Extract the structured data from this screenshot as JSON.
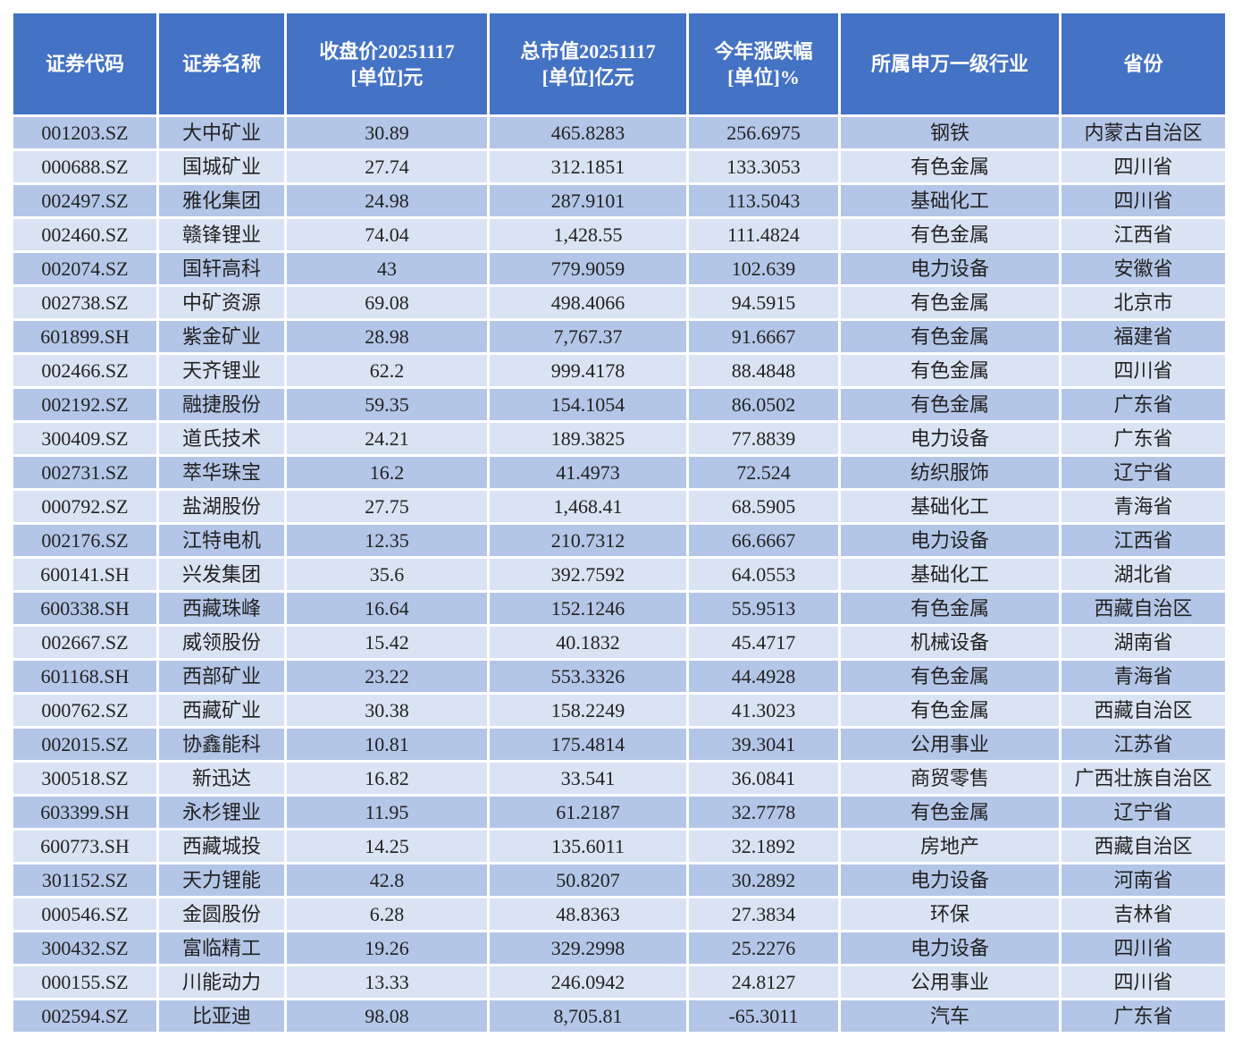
{
  "table": {
    "header": [
      "证券代码",
      "证券名称",
      "收盘价20251117\n[单位]元",
      "总市值20251117\n[单位]亿元",
      "今年涨跌幅\n[单位]%",
      "所属申万一级行业",
      "省份"
    ],
    "rows": [
      [
        "001203.SZ",
        "大中矿业",
        "30.89",
        "465.8283",
        "256.6975",
        "钢铁",
        "内蒙古自治区"
      ],
      [
        "000688.SZ",
        "国城矿业",
        "27.74",
        "312.1851",
        "133.3053",
        "有色金属",
        "四川省"
      ],
      [
        "002497.SZ",
        "雅化集团",
        "24.98",
        "287.9101",
        "113.5043",
        "基础化工",
        "四川省"
      ],
      [
        "002460.SZ",
        "赣锋锂业",
        "74.04",
        "1,428.55",
        "111.4824",
        "有色金属",
        "江西省"
      ],
      [
        "002074.SZ",
        "国轩高科",
        "43",
        "779.9059",
        "102.639",
        "电力设备",
        "安徽省"
      ],
      [
        "002738.SZ",
        "中矿资源",
        "69.08",
        "498.4066",
        "94.5915",
        "有色金属",
        "北京市"
      ],
      [
        "601899.SH",
        "紫金矿业",
        "28.98",
        "7,767.37",
        "91.6667",
        "有色金属",
        "福建省"
      ],
      [
        "002466.SZ",
        "天齐锂业",
        "62.2",
        "999.4178",
        "88.4848",
        "有色金属",
        "四川省"
      ],
      [
        "002192.SZ",
        "融捷股份",
        "59.35",
        "154.1054",
        "86.0502",
        "有色金属",
        "广东省"
      ],
      [
        "300409.SZ",
        "道氏技术",
        "24.21",
        "189.3825",
        "77.8839",
        "电力设备",
        "广东省"
      ],
      [
        "002731.SZ",
        "萃华珠宝",
        "16.2",
        "41.4973",
        "72.524",
        "纺织服饰",
        "辽宁省"
      ],
      [
        "000792.SZ",
        "盐湖股份",
        "27.75",
        "1,468.41",
        "68.5905",
        "基础化工",
        "青海省"
      ],
      [
        "002176.SZ",
        "江特电机",
        "12.35",
        "210.7312",
        "66.6667",
        "电力设备",
        "江西省"
      ],
      [
        "600141.SH",
        "兴发集团",
        "35.6",
        "392.7592",
        "64.0553",
        "基础化工",
        "湖北省"
      ],
      [
        "600338.SH",
        "西藏珠峰",
        "16.64",
        "152.1246",
        "55.9513",
        "有色金属",
        "西藏自治区"
      ],
      [
        "002667.SZ",
        "威领股份",
        "15.42",
        "40.1832",
        "45.4717",
        "机械设备",
        "湖南省"
      ],
      [
        "601168.SH",
        "西部矿业",
        "23.22",
        "553.3326",
        "44.4928",
        "有色金属",
        "青海省"
      ],
      [
        "000762.SZ",
        "西藏矿业",
        "30.38",
        "158.2249",
        "41.3023",
        "有色金属",
        "西藏自治区"
      ],
      [
        "002015.SZ",
        "协鑫能科",
        "10.81",
        "175.4814",
        "39.3041",
        "公用事业",
        "江苏省"
      ],
      [
        "300518.SZ",
        "新迅达",
        "16.82",
        "33.541",
        "36.0841",
        "商贸零售",
        "广西壮族自治区"
      ],
      [
        "603399.SH",
        "永杉锂业",
        "11.95",
        "61.2187",
        "32.7778",
        "有色金属",
        "辽宁省"
      ],
      [
        "600773.SH",
        "西藏城投",
        "14.25",
        "135.6011",
        "32.1892",
        "房地产",
        "西藏自治区"
      ],
      [
        "301152.SZ",
        "天力锂能",
        "42.8",
        "50.8207",
        "30.2892",
        "电力设备",
        "河南省"
      ],
      [
        "000546.SZ",
        "金圆股份",
        "6.28",
        "48.8363",
        "27.3834",
        "环保",
        "吉林省"
      ],
      [
        "300432.SZ",
        "富临精工",
        "19.26",
        "329.2998",
        "25.2276",
        "电力设备",
        "四川省"
      ],
      [
        "000155.SZ",
        "川能动力",
        "13.33",
        "246.0942",
        "24.8127",
        "公用事业",
        "四川省"
      ],
      [
        "002594.SZ",
        "比亚迪",
        "98.08",
        "8,705.81",
        "-65.3011",
        "汽车",
        "广东省"
      ]
    ]
  }
}
